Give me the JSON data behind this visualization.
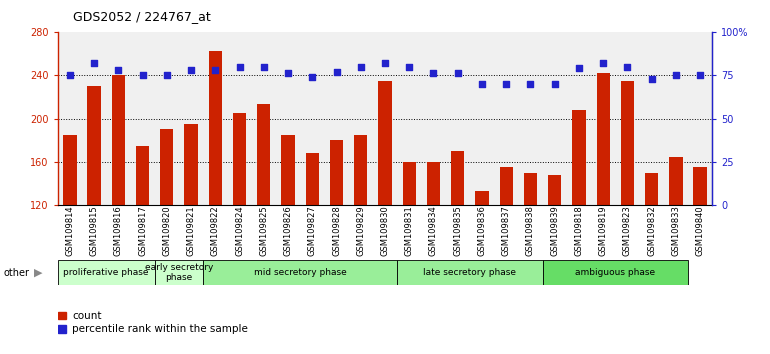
{
  "title": "GDS2052 / 224767_at",
  "samples": [
    "GSM109814",
    "GSM109815",
    "GSM109816",
    "GSM109817",
    "GSM109820",
    "GSM109821",
    "GSM109822",
    "GSM109824",
    "GSM109825",
    "GSM109826",
    "GSM109827",
    "GSM109828",
    "GSM109829",
    "GSM109830",
    "GSM109831",
    "GSM109834",
    "GSM109835",
    "GSM109836",
    "GSM109837",
    "GSM109838",
    "GSM109839",
    "GSM109818",
    "GSM109819",
    "GSM109823",
    "GSM109832",
    "GSM109833",
    "GSM109840"
  ],
  "counts": [
    185,
    230,
    240,
    175,
    190,
    195,
    262,
    205,
    213,
    185,
    168,
    180,
    185,
    235,
    160,
    160,
    170,
    133,
    155,
    150,
    148,
    208,
    242,
    235,
    150,
    165,
    155
  ],
  "percentiles": [
    75,
    82,
    78,
    75,
    75,
    78,
    78,
    80,
    80,
    76,
    74,
    77,
    80,
    82,
    80,
    76,
    76,
    70,
    70,
    70,
    70,
    79,
    82,
    80,
    73,
    75,
    75
  ],
  "phase_regions": [
    {
      "name": "proliferative phase",
      "start": 0,
      "end": 4,
      "color": "#ccffcc"
    },
    {
      "name": "early secretory\nphase",
      "start": 4,
      "end": 6,
      "color": "#ccffcc"
    },
    {
      "name": "mid secretory phase",
      "start": 6,
      "end": 14,
      "color": "#99ee99"
    },
    {
      "name": "late secretory phase",
      "start": 14,
      "end": 20,
      "color": "#99ee99"
    },
    {
      "name": "ambiguous phase",
      "start": 20,
      "end": 26,
      "color": "#66dd66"
    }
  ],
  "ylim_left": [
    120,
    280
  ],
  "ylim_right": [
    0,
    100
  ],
  "yticks_left": [
    120,
    160,
    200,
    240,
    280
  ],
  "yticks_right": [
    0,
    25,
    50,
    75,
    100
  ],
  "ytick_labels_right": [
    "0",
    "25",
    "50",
    "75",
    "100%"
  ],
  "bar_color": "#cc2200",
  "dot_color": "#2222cc",
  "bar_width": 0.55,
  "plot_bg": "#f0f0f0",
  "legend_items": [
    {
      "label": "count",
      "color": "#cc2200"
    },
    {
      "label": "percentile rank within the sample",
      "color": "#2222cc"
    }
  ]
}
